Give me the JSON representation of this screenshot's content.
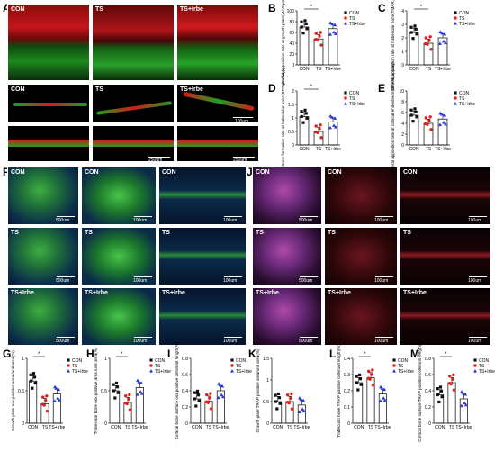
{
  "panel_letters": [
    "A",
    "B",
    "C",
    "D",
    "E",
    "F",
    "G",
    "H",
    "I",
    "J",
    "K",
    "L",
    "M"
  ],
  "groups": {
    "con": "CON",
    "ts": "TS",
    "tsirbe": "TS+Irbe"
  },
  "colors": {
    "con": "#111111",
    "ts": "#e0201b",
    "tsirbe": "#2a3bd8"
  },
  "scales": {
    "a_top": "",
    "a_mid": "100um",
    "a_bot": "250um",
    "f_left": "500um",
    "f_mid": "100um",
    "f_right": "100um",
    "j_left": "500um",
    "j_mid": "100um",
    "j_right": "100um"
  },
  "image_labels": {
    "f_rows": [
      "CON",
      "TS",
      "TS+Irbe"
    ],
    "j_rows": [
      "CON",
      "TS",
      "TS+Irbe"
    ]
  },
  "chart_data": [
    {
      "panel": "B",
      "type": "bar",
      "categories": [
        "CON",
        "TS",
        "TS+Irbe"
      ],
      "values": [
        70,
        48,
        67
      ],
      "ylabel": "Mineral apposition rate at growth plate(MAR,μm/day)",
      "ylim": [
        0,
        100
      ],
      "yticks": [
        0,
        20,
        40,
        60,
        80,
        100
      ],
      "sig": "*"
    },
    {
      "panel": "C",
      "type": "bar",
      "categories": [
        "CON",
        "TS",
        "TS+Irbe"
      ],
      "values": [
        2.4,
        1.6,
        2.0
      ],
      "ylabel": "Mineral apposition rate at trabecular bone(TMAR,μm/day)",
      "ylim": [
        0,
        4
      ],
      "yticks": [
        0,
        1,
        2,
        3,
        4
      ],
      "sig": "*"
    },
    {
      "panel": "D",
      "type": "bar",
      "categories": [
        "CON",
        "TS",
        "TS+Irbe"
      ],
      "values": [
        1.05,
        0.5,
        0.85
      ],
      "ylabel": "Bone formation rate at trabecular bone(BFR,μm/day)",
      "ylim": [
        0,
        2
      ],
      "yticks": [
        0,
        0.5,
        1.0,
        1.5,
        2.0
      ],
      "sig": "*"
    },
    {
      "panel": "E",
      "type": "bar",
      "categories": [
        "CON",
        "TS",
        "TS+Irbe"
      ],
      "values": [
        5.5,
        4.0,
        4.8
      ],
      "ylabel": "Mineral apposition rate at cortical endosteum(EMAR,μm/day)",
      "ylim": [
        0,
        10
      ],
      "yticks": [
        0,
        2,
        4,
        6,
        8,
        10
      ],
      "sig": ""
    },
    {
      "panel": "G",
      "type": "bar",
      "categories": [
        "CON",
        "TS",
        "TS+Irbe"
      ],
      "values": [
        0.65,
        0.3,
        0.45
      ],
      "ylabel": "Growth plate osx positive area /unit area(%)",
      "ylim": [
        0,
        1
      ],
      "yticks": [
        0,
        0.5,
        1.0
      ],
      "sig": "*"
    },
    {
      "panel": "H",
      "type": "bar",
      "categories": [
        "CON",
        "TS",
        "TS+Irbe"
      ],
      "values": [
        0.5,
        0.32,
        0.55
      ],
      "ylabel": "Trabecular bone osx positive area /unit area(%)",
      "ylim": [
        0,
        1
      ],
      "yticks": [
        0,
        0.5,
        1.0
      ],
      "sig": "*"
    },
    {
      "panel": "I",
      "type": "bar",
      "categories": [
        "CON",
        "TS",
        "TS+Irbe"
      ],
      "values": [
        0.3,
        0.27,
        0.4
      ],
      "ylabel": "Cortical bone surface osx positive cells/unit length(%)",
      "ylim": [
        0,
        0.8
      ],
      "yticks": [
        0,
        0.2,
        0.4,
        0.6,
        0.8
      ],
      "sig": ""
    },
    {
      "panel": "K",
      "type": "bar",
      "categories": [
        "CON",
        "TS",
        "TS+Irbe"
      ],
      "values": [
        0.5,
        0.5,
        0.42
      ],
      "ylabel": "Growth plate TRAP positive area/unit area(%)",
      "ylim": [
        0,
        1.5
      ],
      "yticks": [
        0,
        0.5,
        1.0,
        1.5
      ],
      "sig": ""
    },
    {
      "panel": "L",
      "type": "bar",
      "categories": [
        "CON",
        "TS",
        "TS+Irbe"
      ],
      "values": [
        0.25,
        0.28,
        0.18
      ],
      "ylabel": "Trabecular bone TRAP positive cells/unit length(%)",
      "ylim": [
        0,
        0.4
      ],
      "yticks": [
        0,
        0.1,
        0.2,
        0.3,
        0.4
      ],
      "sig": "*"
    },
    {
      "panel": "M",
      "type": "bar",
      "categories": [
        "CON",
        "TS",
        "TS+Irbe"
      ],
      "values": [
        0.35,
        0.5,
        0.3
      ],
      "ylabel": "Cortical bone surface TRAP positive cells/unit length(%)",
      "ylim": [
        0,
        0.8
      ],
      "yticks": [
        0,
        0.2,
        0.4,
        0.6,
        0.8
      ],
      "sig": "*"
    }
  ]
}
